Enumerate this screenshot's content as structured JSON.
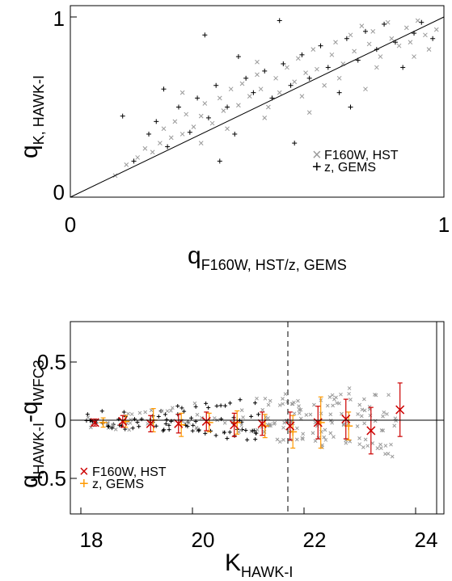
{
  "chart_data": [
    {
      "type": "scatter",
      "panel": "top",
      "xlabel_main": "q",
      "xlabel_sub": "F160W, HST/z, GEMS",
      "ylabel_main": "q",
      "ylabel_sub": "K, HAWK-I",
      "xlim": [
        0,
        1
      ],
      "ylim": [
        0,
        1
      ],
      "x_ticks": [
        "0",
        "1"
      ],
      "y_ticks": [
        "0",
        "1"
      ],
      "reference_line": "y = x",
      "legend": [
        {
          "marker": "×",
          "label": "F160W, HST",
          "color": "#9a9a9a"
        },
        {
          "marker": "+",
          "label": "z, GEMS",
          "color": "#000000"
        }
      ],
      "legend_placement": "lower-right",
      "series": [
        {
          "name": "F160W, HST",
          "marker": "x",
          "color": "#9a9a9a",
          "points": [
            [
              0.12,
              0.12
            ],
            [
              0.15,
              0.18
            ],
            [
              0.18,
              0.22
            ],
            [
              0.2,
              0.27
            ],
            [
              0.22,
              0.25
            ],
            [
              0.24,
              0.3
            ],
            [
              0.25,
              0.38
            ],
            [
              0.27,
              0.33
            ],
            [
              0.28,
              0.42
            ],
            [
              0.3,
              0.35
            ],
            [
              0.31,
              0.46
            ],
            [
              0.33,
              0.39
            ],
            [
              0.35,
              0.45
            ],
            [
              0.36,
              0.52
            ],
            [
              0.38,
              0.41
            ],
            [
              0.4,
              0.55
            ],
            [
              0.41,
              0.48
            ],
            [
              0.43,
              0.6
            ],
            [
              0.45,
              0.51
            ],
            [
              0.46,
              0.63
            ],
            [
              0.48,
              0.56
            ],
            [
              0.5,
              0.68
            ],
            [
              0.51,
              0.6
            ],
            [
              0.53,
              0.5
            ],
            [
              0.55,
              0.66
            ],
            [
              0.56,
              0.58
            ],
            [
              0.58,
              0.72
            ],
            [
              0.6,
              0.64
            ],
            [
              0.61,
              0.77
            ],
            [
              0.63,
              0.69
            ],
            [
              0.65,
              0.82
            ],
            [
              0.66,
              0.71
            ],
            [
              0.68,
              0.62
            ],
            [
              0.7,
              0.79
            ],
            [
              0.71,
              0.86
            ],
            [
              0.73,
              0.74
            ],
            [
              0.75,
              0.9
            ],
            [
              0.76,
              0.81
            ],
            [
              0.78,
              0.95
            ],
            [
              0.8,
              0.85
            ],
            [
              0.81,
              0.92
            ],
            [
              0.83,
              0.78
            ],
            [
              0.85,
              0.97
            ],
            [
              0.86,
              0.88
            ],
            [
              0.88,
              0.84
            ],
            [
              0.9,
              0.94
            ],
            [
              0.91,
              0.86
            ],
            [
              0.93,
              0.98
            ],
            [
              0.95,
              0.9
            ],
            [
              0.96,
              0.82
            ],
            [
              0.98,
              0.93
            ],
            [
              0.35,
              0.3
            ],
            [
              0.42,
              0.38
            ],
            [
              0.52,
              0.44
            ],
            [
              0.62,
              0.56
            ],
            [
              0.72,
              0.66
            ],
            [
              0.82,
              0.72
            ],
            [
              0.92,
              0.78
            ],
            [
              0.3,
              0.58
            ],
            [
              0.5,
              0.75
            ],
            [
              0.64,
              0.47
            ],
            [
              0.79,
              0.6
            ]
          ]
        },
        {
          "name": "z, GEMS",
          "marker": "+",
          "color": "#000000",
          "points": [
            [
              0.14,
              0.45
            ],
            [
              0.17,
              0.2
            ],
            [
              0.21,
              0.35
            ],
            [
              0.23,
              0.42
            ],
            [
              0.26,
              0.28
            ],
            [
              0.29,
              0.5
            ],
            [
              0.32,
              0.36
            ],
            [
              0.34,
              0.55
            ],
            [
              0.37,
              0.44
            ],
            [
              0.39,
              0.62
            ],
            [
              0.42,
              0.5
            ],
            [
              0.44,
              0.35
            ],
            [
              0.47,
              0.66
            ],
            [
              0.49,
              0.58
            ],
            [
              0.52,
              0.7
            ],
            [
              0.54,
              0.55
            ],
            [
              0.57,
              0.74
            ],
            [
              0.59,
              0.62
            ],
            [
              0.62,
              0.79
            ],
            [
              0.64,
              0.66
            ],
            [
              0.67,
              0.84
            ],
            [
              0.69,
              0.72
            ],
            [
              0.72,
              0.58
            ],
            [
              0.74,
              0.88
            ],
            [
              0.77,
              0.76
            ],
            [
              0.79,
              0.92
            ],
            [
              0.82,
              0.82
            ],
            [
              0.84,
              0.96
            ],
            [
              0.87,
              0.86
            ],
            [
              0.89,
              0.72
            ],
            [
              0.92,
              0.91
            ],
            [
              0.94,
              0.97
            ],
            [
              0.97,
              0.88
            ],
            [
              0.36,
              0.9
            ],
            [
              0.56,
              0.98
            ],
            [
              0.4,
              0.2
            ],
            [
              0.6,
              0.3
            ],
            [
              0.75,
              0.5
            ],
            [
              0.25,
              0.6
            ],
            [
              0.45,
              0.78
            ]
          ]
        }
      ]
    },
    {
      "type": "scatter",
      "panel": "bottom",
      "xlabel_main": "K",
      "xlabel_sub": "HAWK-I",
      "ylabel_main": "q",
      "ylabel_sub1": "HAWK-I",
      "ylabel_dash": "-q",
      "ylabel_sub2": "WFC3",
      "xlim": [
        17.8,
        24.5
      ],
      "ylim": [
        -0.8,
        0.8
      ],
      "x_ticks": [
        "18",
        "20",
        "22",
        "24"
      ],
      "y_ticks": [
        "0.5",
        "0",
        "-0.5"
      ],
      "y_tick_values": [
        0.5,
        0,
        -0.5
      ],
      "x_tick_values": [
        18,
        20,
        22,
        24
      ],
      "reference_lines": {
        "horizontal_y": 0,
        "dashed_x": 22,
        "solid_x": 24.35
      },
      "legend": [
        {
          "marker": "×",
          "label": "F160W, HST",
          "color": "#cc0000"
        },
        {
          "marker": "+",
          "label": "z, GEMS",
          "color": "#ff9900"
        }
      ],
      "legend_placement": "lower-left",
      "binned_F160W_HST": {
        "color": "#cc0000",
        "x": [
          18.25,
          18.75,
          19.25,
          19.75,
          20.25,
          20.75,
          21.25,
          21.75,
          22.25,
          22.75,
          23.2,
          23.72
        ],
        "y": [
          -0.02,
          -0.01,
          -0.03,
          -0.03,
          -0.01,
          -0.04,
          -0.03,
          -0.05,
          -0.02,
          0.01,
          -0.09,
          0.09
        ],
        "err": [
          0.03,
          0.05,
          0.07,
          0.08,
          0.08,
          0.1,
          0.1,
          0.12,
          0.14,
          0.17,
          0.2,
          0.23
        ]
      },
      "binned_z_GEMS": {
        "color": "#ff9900",
        "x": [
          18.4,
          18.8,
          19.3,
          19.8,
          20.3,
          20.8,
          21.3,
          21.8,
          22.3,
          22.8
        ],
        "y": [
          -0.02,
          -0.01,
          0.0,
          -0.04,
          -0.02,
          -0.02,
          -0.05,
          -0.1,
          -0.02,
          -0.05
        ],
        "err": [
          0.04,
          0.05,
          0.1,
          0.1,
          0.08,
          0.1,
          0.1,
          0.14,
          0.22,
          0.12
        ]
      },
      "scatter_F160W_HST_color": "#9a9a9a",
      "scatter_z_GEMS_color": "#000000"
    }
  ]
}
